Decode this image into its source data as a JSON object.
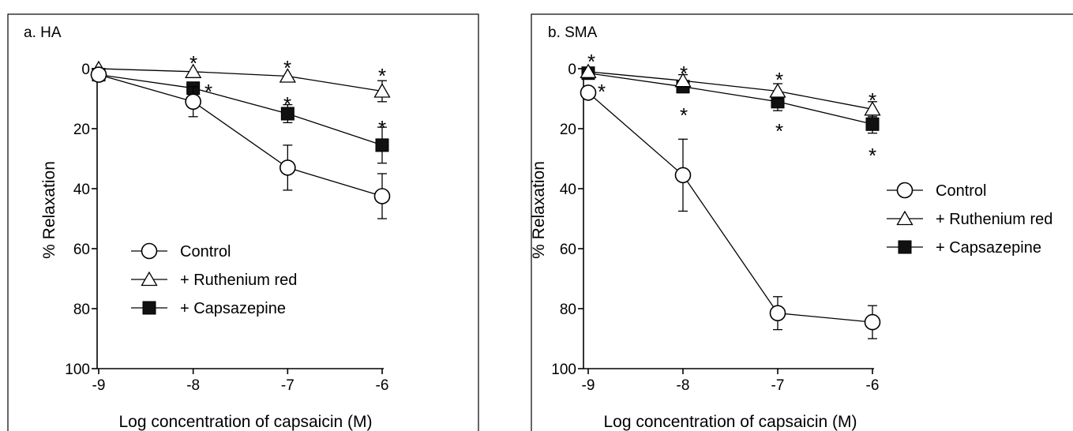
{
  "chart_data": [
    {
      "type": "line",
      "title": "a. HA",
      "xlabel": "Log concentration of capsaicin (M)",
      "ylabel": "% Relaxation",
      "x": [
        -9,
        -8,
        -7,
        -6
      ],
      "xticks": [
        "-9",
        "-8",
        "-7",
        "-6"
      ],
      "yticks": [
        "0",
        "20",
        "40",
        "60",
        "80",
        "100"
      ],
      "xlim": [
        -9,
        -6
      ],
      "ylim": [
        0,
        100
      ],
      "y_inverted": true,
      "legend_position": "center",
      "series": [
        {
          "name": "Control",
          "marker": "open-circle",
          "values": [
            2,
            11,
            33,
            42.5
          ],
          "err": [
            0,
            5,
            7.5,
            7.5
          ],
          "sig": [
            "",
            "",
            "",
            ""
          ]
        },
        {
          "name": "+ Ruthenium red",
          "marker": "open-triangle",
          "values": [
            0,
            1,
            2.5,
            7.5
          ],
          "err": [
            0,
            0,
            0,
            3.5
          ],
          "sig": [
            "",
            "*",
            "*",
            "*"
          ]
        },
        {
          "name": "+ Capsazepine",
          "marker": "filled-square",
          "values": [
            2,
            6.5,
            15,
            25.5
          ],
          "err": [
            0,
            0,
            3,
            6
          ],
          "sig": [
            "",
            "*",
            "*",
            "*"
          ]
        }
      ]
    },
    {
      "type": "line",
      "title": "b. SMA",
      "xlabel": "Log concentration of capsaicin (M)",
      "ylabel": "% Relaxation",
      "x": [
        -9,
        -8,
        -7,
        -6
      ],
      "xticks": [
        "-9",
        "-8",
        "-7",
        "-6"
      ],
      "yticks": [
        "0",
        "20",
        "40",
        "60",
        "80",
        "100"
      ],
      "xlim": [
        -9,
        -6
      ],
      "ylim": [
        0,
        100
      ],
      "y_inverted": true,
      "legend_position": "right",
      "series": [
        {
          "name": "Control",
          "marker": "open-circle",
          "values": [
            8,
            35.5,
            81.5,
            84.5
          ],
          "err": [
            0,
            12,
            5.5,
            5.5
          ],
          "sig": [
            "*",
            "",
            "",
            ""
          ]
        },
        {
          "name": "+ Ruthenium red",
          "marker": "open-triangle",
          "values": [
            1,
            4,
            7.5,
            13.5
          ],
          "err": [
            0,
            2,
            2.5,
            2.5
          ],
          "sig": [
            "*",
            "*",
            "*",
            "*"
          ]
        },
        {
          "name": "+ Capsazepine",
          "marker": "filled-square",
          "values": [
            1.5,
            6,
            11,
            18.5
          ],
          "err": [
            0,
            2,
            3,
            3
          ],
          "sig": [
            "",
            "*",
            "*",
            "*"
          ]
        }
      ]
    }
  ]
}
